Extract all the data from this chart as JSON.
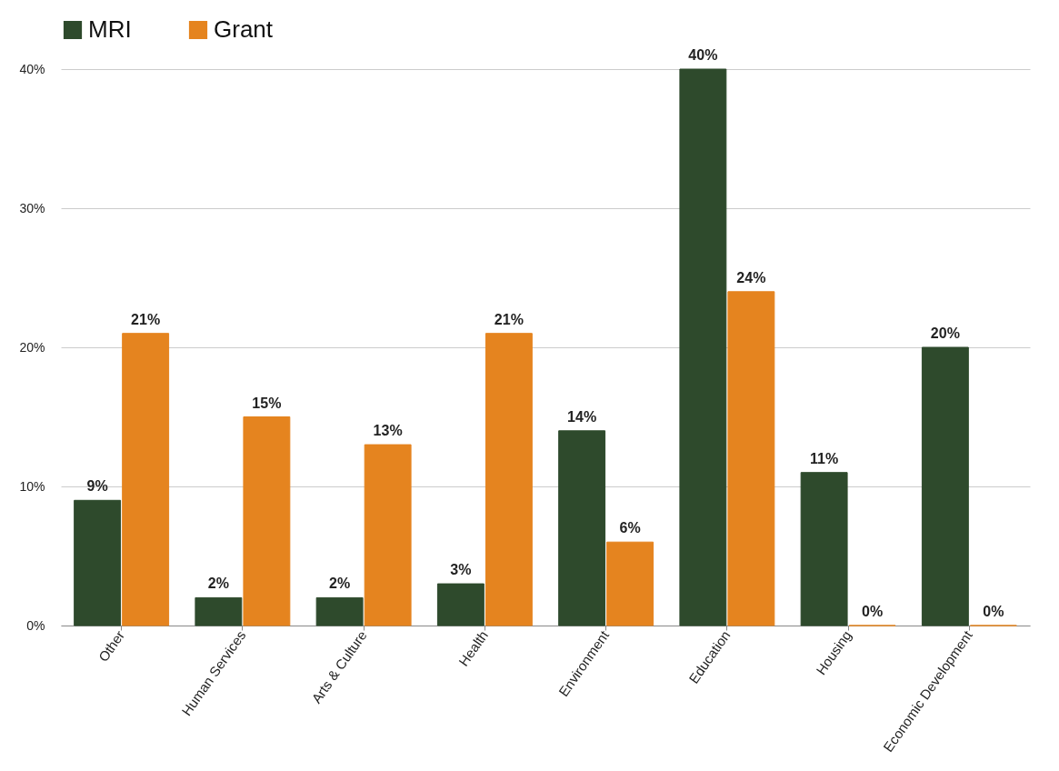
{
  "chart_data": {
    "type": "bar",
    "categories": [
      "Other",
      "Human Services",
      "Arts & Culture",
      "Health",
      "Environment",
      "Education",
      "Housing",
      "Economic Development"
    ],
    "series": [
      {
        "name": "MRI",
        "color": "#2e4a2c",
        "values": [
          9,
          2,
          2,
          3,
          14,
          40,
          11,
          20
        ],
        "value_labels": [
          "9%",
          "2%",
          "2%",
          "3%",
          "14%",
          "40%",
          "11%",
          "20%"
        ]
      },
      {
        "name": "Grant",
        "color": "#e5841f",
        "values": [
          21,
          15,
          13,
          21,
          6,
          24,
          0,
          0
        ],
        "value_labels": [
          "21%",
          "15%",
          "13%",
          "21%",
          "6%",
          "24%",
          "0%",
          "0%"
        ]
      }
    ],
    "ylim": [
      0,
      40
    ],
    "yticks": [
      {
        "value": 0,
        "label": "0%"
      },
      {
        "value": 10,
        "label": "10%"
      },
      {
        "value": 20,
        "label": "20%"
      },
      {
        "value": 30,
        "label": "30%"
      },
      {
        "value": 40,
        "label": "40%"
      }
    ],
    "grid": "y",
    "legend": "top left"
  }
}
